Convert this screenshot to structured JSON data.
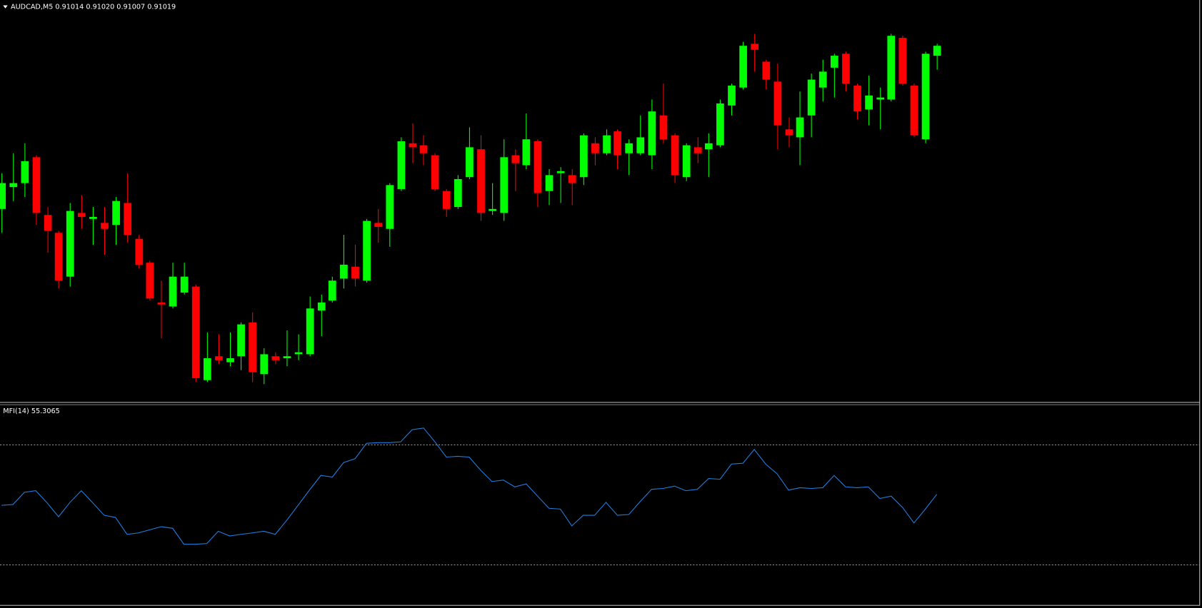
{
  "chart_data": [
    {
      "type": "candlestick",
      "title": "AUDCAD,M5  0.91014 0.91020 0.91007 0.91019",
      "up_color": "#00ff00",
      "down_color": "#ff0000",
      "ylim": [
        0.9084,
        0.91042
      ],
      "open": [
        0.90937,
        0.90948,
        0.9095,
        0.90963,
        0.90934,
        0.90925,
        0.90903,
        0.90935,
        0.90932,
        0.9093,
        0.90929,
        0.9094,
        0.90922,
        0.9091,
        0.9089,
        0.90888,
        0.90895,
        0.90898,
        0.90851,
        0.90863,
        0.9086,
        0.90863,
        0.9088,
        0.90854,
        0.90863,
        0.90862,
        0.90864,
        0.90864,
        0.90886,
        0.90891,
        0.90902,
        0.90908,
        0.90901,
        0.9093,
        0.90927,
        0.90947,
        0.9097,
        0.90969,
        0.90964,
        0.90946,
        0.90938,
        0.90953,
        0.90967,
        0.90936,
        0.90935,
        0.90964,
        0.90959,
        0.90971,
        0.90946,
        0.90955,
        0.90954,
        0.90953,
        0.9097,
        0.90965,
        0.90976,
        0.90965,
        0.90965,
        0.90964,
        0.90984,
        0.90974,
        0.90953,
        0.90968,
        0.90967,
        0.90969,
        0.90989,
        0.90998,
        0.9102,
        0.91011,
        0.91001,
        0.90977,
        0.90973,
        0.90984,
        0.90998,
        0.91008,
        0.91015,
        0.90999,
        0.90987,
        0.90992,
        0.90992,
        0.91023,
        0.90999,
        0.90972,
        0.91014
      ],
      "high": [
        0.90955,
        0.90965,
        0.9097,
        0.90964,
        0.90938,
        0.90926,
        0.9094,
        0.90944,
        0.90938,
        0.90938,
        0.90943,
        0.90955,
        0.90924,
        0.90911,
        0.90901,
        0.9091,
        0.9091,
        0.90899,
        0.90875,
        0.90874,
        0.90875,
        0.9088,
        0.90885,
        0.90867,
        0.90865,
        0.90876,
        0.90874,
        0.90893,
        0.90894,
        0.90903,
        0.90924,
        0.90919,
        0.90932,
        0.90937,
        0.9095,
        0.90973,
        0.9098,
        0.90974,
        0.90965,
        0.90947,
        0.90954,
        0.90978,
        0.90974,
        0.9095,
        0.90972,
        0.90967,
        0.90985,
        0.90972,
        0.90957,
        0.90958,
        0.90957,
        0.90975,
        0.90973,
        0.90977,
        0.90977,
        0.90972,
        0.90984,
        0.90992,
        0.91,
        0.90975,
        0.9097,
        0.90973,
        0.90975,
        0.90992,
        0.91,
        0.91021,
        0.91025,
        0.91012,
        0.9101,
        0.90983,
        0.90996,
        0.91005,
        0.91012,
        0.91015,
        0.91016,
        0.91,
        0.91004,
        0.90998,
        0.91025,
        0.91024,
        0.91,
        0.91016,
        0.9102
      ],
      "low": [
        0.90925,
        0.90941,
        0.90943,
        0.90929,
        0.90915,
        0.90897,
        0.90898,
        0.90927,
        0.90919,
        0.90914,
        0.90919,
        0.9092,
        0.90907,
        0.90891,
        0.90872,
        0.90887,
        0.90894,
        0.9085,
        0.9085,
        0.90859,
        0.90858,
        0.90856,
        0.9085,
        0.90849,
        0.90859,
        0.90858,
        0.90861,
        0.90863,
        0.90873,
        0.9089,
        0.90897,
        0.90898,
        0.909,
        0.9092,
        0.90918,
        0.90946,
        0.9096,
        0.90959,
        0.90946,
        0.90933,
        0.90937,
        0.90952,
        0.90931,
        0.90934,
        0.90931,
        0.90946,
        0.90957,
        0.90938,
        0.90939,
        0.9094,
        0.90939,
        0.90949,
        0.90959,
        0.90964,
        0.90957,
        0.90954,
        0.90964,
        0.90957,
        0.9097,
        0.9095,
        0.90951,
        0.9096,
        0.90953,
        0.90968,
        0.90984,
        0.90997,
        0.91006,
        0.90997,
        0.90967,
        0.90968,
        0.90959,
        0.90973,
        0.90991,
        0.90993,
        0.90996,
        0.90982,
        0.90979,
        0.90977,
        0.90991,
        0.90999,
        0.90973,
        0.9097,
        0.91007
      ],
      "close": [
        0.9095,
        0.9095,
        0.90961,
        0.90935,
        0.90926,
        0.90901,
        0.90936,
        0.90933,
        0.90933,
        0.90927,
        0.90941,
        0.90924,
        0.90909,
        0.90892,
        0.90889,
        0.90903,
        0.90903,
        0.90852,
        0.90862,
        0.90861,
        0.90862,
        0.90879,
        0.90855,
        0.90864,
        0.90861,
        0.90863,
        0.90865,
        0.90887,
        0.9089,
        0.90901,
        0.90909,
        0.90902,
        0.90931,
        0.90928,
        0.90949,
        0.90971,
        0.90968,
        0.90965,
        0.90947,
        0.90937,
        0.90952,
        0.90968,
        0.90935,
        0.90937,
        0.90963,
        0.9096,
        0.90972,
        0.90945,
        0.90954,
        0.90956,
        0.9095,
        0.90974,
        0.90965,
        0.90974,
        0.90964,
        0.9097,
        0.90973,
        0.90986,
        0.90972,
        0.90954,
        0.90969,
        0.90965,
        0.9097,
        0.9099,
        0.90999,
        0.91019,
        0.91017,
        0.91002,
        0.90979,
        0.90974,
        0.90983,
        0.91002,
        0.91006,
        0.91014,
        0.91,
        0.90986,
        0.90994,
        0.90993,
        0.91024,
        0.91,
        0.90974,
        0.91015,
        0.91019
      ]
    },
    {
      "type": "line",
      "title": "MFI(14) 55.3065",
      "color": "#1e7fe0",
      "ylim": [
        0,
        100
      ],
      "levels": [
        20,
        80
      ],
      "values": [
        49.8,
        50.2,
        56.3,
        57.1,
        51.0,
        44.1,
        51.3,
        57.1,
        51.0,
        44.8,
        43.7,
        35.3,
        36.0,
        37.6,
        39.1,
        38.3,
        30.3,
        30.3,
        30.7,
        36.8,
        34.5,
        35.3,
        36.0,
        36.8,
        35.3,
        42.2,
        49.8,
        57.4,
        64.7,
        63.9,
        71.2,
        73.1,
        80.8,
        81.1,
        81.1,
        81.5,
        87.6,
        88.4,
        81.5,
        73.9,
        74.3,
        73.9,
        67.4,
        61.7,
        62.4,
        59.0,
        60.5,
        54.4,
        48.3,
        47.9,
        39.5,
        44.8,
        44.8,
        51.3,
        44.8,
        45.2,
        51.7,
        57.8,
        58.2,
        59.4,
        57.1,
        57.8,
        63.2,
        62.8,
        70.4,
        70.8,
        77.7,
        70.4,
        65.5,
        57.4,
        58.6,
        58.2,
        58.6,
        64.7,
        59.0,
        58.6,
        59.0,
        53.2,
        54.4,
        48.7,
        41.0,
        47.9,
        55.3065
      ]
    }
  ]
}
